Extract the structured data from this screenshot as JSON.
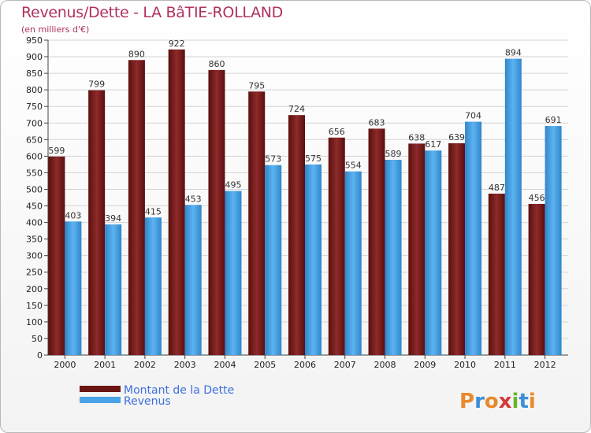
{
  "chart_data": {
    "type": "bar",
    "title": "Revenus/Dette - LA BâTIE-ROLLAND",
    "subtitle": "(en milliers d'€)",
    "categories": [
      "2000",
      "2001",
      "2002",
      "2003",
      "2004",
      "2005",
      "2006",
      "2007",
      "2008",
      "2009",
      "2010",
      "2011",
      "2012"
    ],
    "series": [
      {
        "name": "Montant de la Dette",
        "color": "#7a1c1c",
        "values": [
          599,
          799,
          890,
          922,
          860,
          795,
          724,
          656,
          683,
          638,
          639,
          487,
          456
        ]
      },
      {
        "name": "Revenus",
        "color": "#4aa3e6",
        "values": [
          403,
          394,
          415,
          453,
          495,
          573,
          575,
          554,
          589,
          617,
          704,
          894,
          691
        ]
      }
    ],
    "ylim": [
      0,
      950
    ],
    "ystep": 50,
    "grid": true,
    "legend_placement": "bottom-left"
  },
  "watermark": "Proxiti"
}
